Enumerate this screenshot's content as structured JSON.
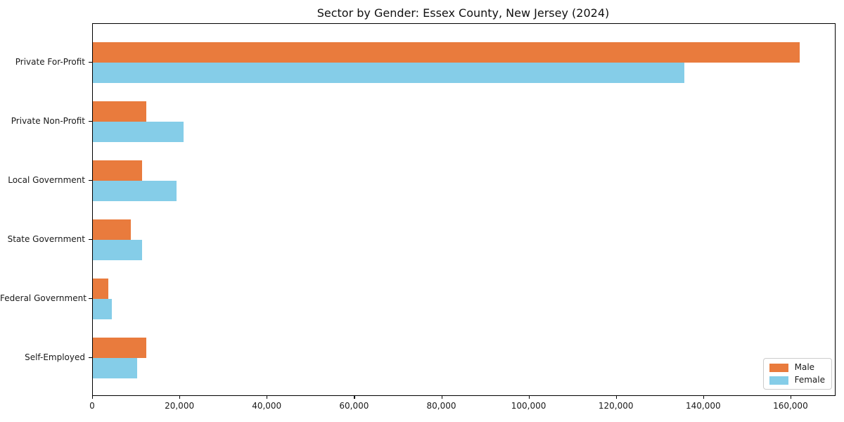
{
  "chart_data": {
    "type": "bar",
    "orientation": "horizontal",
    "title": "Sector by Gender: Essex County, New Jersey (2024)",
    "categories": [
      "Private For-Profit",
      "Private Non-Profit",
      "Local Government",
      "State Government",
      "Federal Government",
      "Self-Employed"
    ],
    "series": [
      {
        "name": "Male",
        "color": "#e97b3d",
        "values": [
          162000,
          12200,
          11300,
          8700,
          3500,
          12200
        ]
      },
      {
        "name": "Female",
        "color": "#85cde8",
        "values": [
          135500,
          20800,
          19200,
          11300,
          4400,
          10200
        ]
      }
    ],
    "xlabel": "",
    "ylabel": "",
    "xlim": [
      0,
      170000
    ],
    "x_ticks": [
      0,
      20000,
      40000,
      60000,
      80000,
      100000,
      120000,
      140000,
      160000
    ],
    "x_tick_labels": [
      "0",
      "20,000",
      "40,000",
      "60,000",
      "80,000",
      "100,000",
      "120,000",
      "140,000",
      "160,000"
    ],
    "grid": false,
    "legend_position": "lower right"
  }
}
